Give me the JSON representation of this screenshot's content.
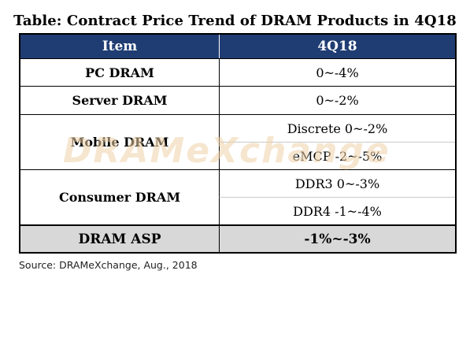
{
  "title": "Table: Contract Price Trend of DRAM Products in 4Q18",
  "header": {
    "item": "Item",
    "period": "4Q18"
  },
  "rows": {
    "pc": {
      "item": "PC DRAM",
      "value": "0~-4%"
    },
    "server": {
      "item": "Server DRAM",
      "value": "0~-2%"
    },
    "mobile": {
      "item": "Mobile DRAM",
      "value1": "Discrete 0~-2%",
      "value2": "eMCP -2~-5%"
    },
    "consumer": {
      "item": "Consumer DRAM",
      "value1": "DDR3 0~-3%",
      "value2": "DDR4 -1~-4%"
    },
    "asp": {
      "item": "DRAM ASP",
      "value": "-1%~-3%"
    }
  },
  "watermark": "DRAMeXchange",
  "source": "Source: DRAMeXchange, Aug., 2018",
  "colors": {
    "header_bg": "#1f3d73",
    "asp_bg": "#d8d8d8",
    "watermark": "#f0d2a8"
  }
}
